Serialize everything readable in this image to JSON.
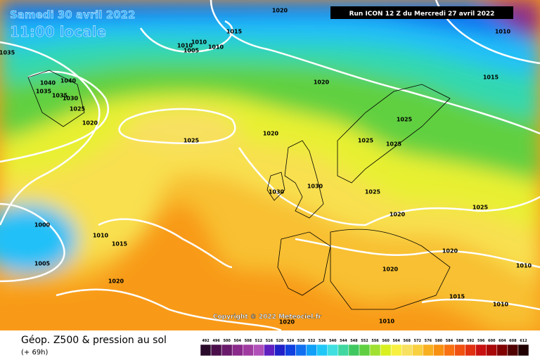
{
  "header": {
    "date": "Samedi 30 avril 2022",
    "time": "11:00 locale",
    "run": "Run ICON 12 Z du Mercredi 27 avril 2022",
    "copyright": "Copyright © 2022 Meteociel.fr"
  },
  "footer": {
    "title": "Géop. Z500 & pression au sol",
    "lead": "(+ 69h)"
  },
  "isobar_labels": [
    1035,
    1040,
    1035,
    1040,
    1035,
    1030,
    1025,
    1020,
    1020,
    1015,
    1010,
    1010,
    1005,
    1010,
    1020,
    1025,
    1020,
    1030,
    1030,
    1025,
    1025,
    1025,
    1025,
    1020,
    1025,
    1010,
    1015,
    1000,
    1010,
    1015,
    1005,
    1020,
    1020,
    1020,
    1010,
    1015,
    1010,
    1010,
    1020
  ],
  "legend": {
    "labels": [
      492,
      496,
      500,
      504,
      508,
      512,
      516,
      520,
      524,
      528,
      532,
      536,
      540,
      544,
      548,
      552,
      556,
      560,
      564,
      568,
      572,
      576,
      580,
      584,
      588,
      592,
      596,
      600,
      604,
      608,
      612
    ],
    "colors": [
      "#2a0a2a",
      "#4a0f4a",
      "#6a1a6a",
      "#8a2a8a",
      "#a03ca0",
      "#b050b8",
      "#6020c0",
      "#2020c8",
      "#1040e0",
      "#1070f0",
      "#10a0f8",
      "#20c8f8",
      "#40e0e0",
      "#40d8a0",
      "#40c860",
      "#60d040",
      "#a0e030",
      "#d8f020",
      "#f8f040",
      "#f8e060",
      "#f8d040",
      "#f8b020",
      "#f89010",
      "#f87010",
      "#f05010",
      "#e03010",
      "#c81010",
      "#a80808",
      "#800000",
      "#500000",
      "#200000"
    ]
  }
}
